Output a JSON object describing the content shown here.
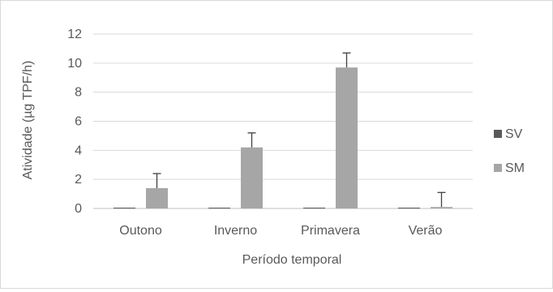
{
  "chart_data": {
    "type": "bar",
    "title": "",
    "xlabel": "Período temporal",
    "ylabel": "Atividade (µg TPF/h)",
    "categories": [
      "Outono",
      "Inverno",
      "Primavera",
      "Verão"
    ],
    "ylim": [
      0,
      12
    ],
    "yticks": [
      0,
      2,
      4,
      6,
      8,
      10,
      12
    ],
    "grid": true,
    "legend_position": "right",
    "series": [
      {
        "name": "SV",
        "color": "#595959",
        "values": [
          0.0,
          0.0,
          0.0,
          0.0
        ],
        "error": [
          0,
          0,
          0,
          0
        ]
      },
      {
        "name": "SM",
        "color": "#a6a6a6",
        "values": [
          1.4,
          4.2,
          9.7,
          0.1
        ],
        "error": [
          1.0,
          1.0,
          1.0,
          1.0
        ]
      }
    ]
  }
}
